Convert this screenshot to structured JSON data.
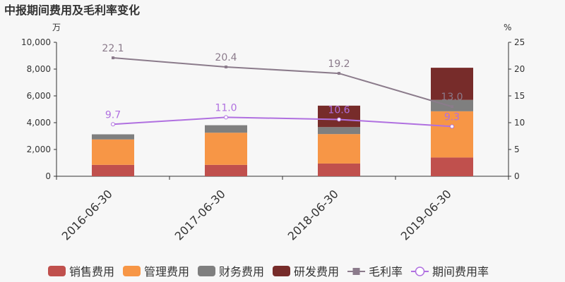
{
  "title": "中报期间费用及毛利率变化",
  "chart_data": {
    "type": "bar",
    "stacked": true,
    "categories": [
      "2016-06-30",
      "2017-06-30",
      "2018-06-30",
      "2019-06-30"
    ],
    "y_left": {
      "unit": "万",
      "min": 0,
      "max": 10000,
      "ticks": [
        "0",
        "2,000",
        "4,000",
        "6,000",
        "8,000",
        "10,000"
      ]
    },
    "y_right": {
      "unit": "%",
      "min": 0,
      "max": 25,
      "ticks": [
        "0",
        "5",
        "10",
        "15",
        "20",
        "25"
      ]
    },
    "bar_series": [
      {
        "name": "销售费用",
        "color": "#c0504d",
        "values": [
          850,
          850,
          950,
          1400
        ]
      },
      {
        "name": "管理费用",
        "color": "#f79646",
        "values": [
          1900,
          2400,
          2200,
          3450
        ]
      },
      {
        "name": "财务费用",
        "color": "#7f7f7f",
        "values": [
          380,
          560,
          520,
          850
        ]
      },
      {
        "name": "研发费用",
        "color": "#772c2a",
        "values": [
          0,
          0,
          1600,
          2400
        ]
      }
    ],
    "line_series": [
      {
        "name": "毛利率",
        "color": "#8b7b8b",
        "marker": "square",
        "values": [
          22.1,
          20.4,
          19.2,
          13.0
        ],
        "labels": [
          "22.1",
          "20.4",
          "19.2",
          "13.0"
        ]
      },
      {
        "name": "期间费用率",
        "color": "#b070e0",
        "marker": "circle",
        "values": [
          9.7,
          11.0,
          10.6,
          9.3
        ],
        "labels": [
          "9.7",
          "11.0",
          "10.6",
          "9.3"
        ]
      }
    ],
    "legend_position": "bottom",
    "grid": false
  }
}
